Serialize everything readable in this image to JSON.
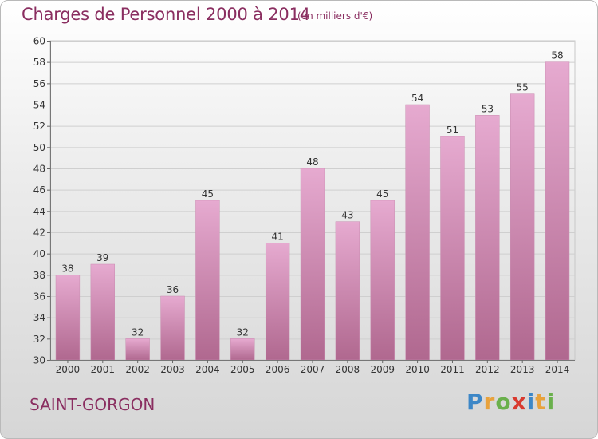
{
  "header": {
    "title": "Charges de Personnel 2000 à 2014",
    "subtitle": "(en milliers d'€)"
  },
  "footer": {
    "commune": "SAINT-GORGON",
    "logo_letters": [
      "P",
      "r",
      "o",
      "x",
      "i",
      "t",
      "i"
    ]
  },
  "colors": {
    "bar_top": "#e6aad0",
    "bar_bottom": "#b0688f",
    "text": "#8a2e60",
    "axis_text": "#333333"
  },
  "chart_data": {
    "type": "bar",
    "title": "Charges de Personnel 2000 à 2014",
    "subtitle": "(en milliers d'€)",
    "categories": [
      "2000",
      "2001",
      "2002",
      "2003",
      "2004",
      "2005",
      "2006",
      "2007",
      "2008",
      "2009",
      "2010",
      "2011",
      "2012",
      "2013",
      "2014"
    ],
    "values": [
      38,
      39,
      32,
      36,
      45,
      32,
      41,
      48,
      43,
      45,
      54,
      51,
      53,
      55,
      58
    ],
    "ylim": [
      30,
      60
    ],
    "yticks": [
      30,
      32,
      34,
      36,
      38,
      40,
      42,
      44,
      46,
      48,
      50,
      52,
      54,
      56,
      58,
      60
    ],
    "grid": true,
    "data_labels": true
  }
}
